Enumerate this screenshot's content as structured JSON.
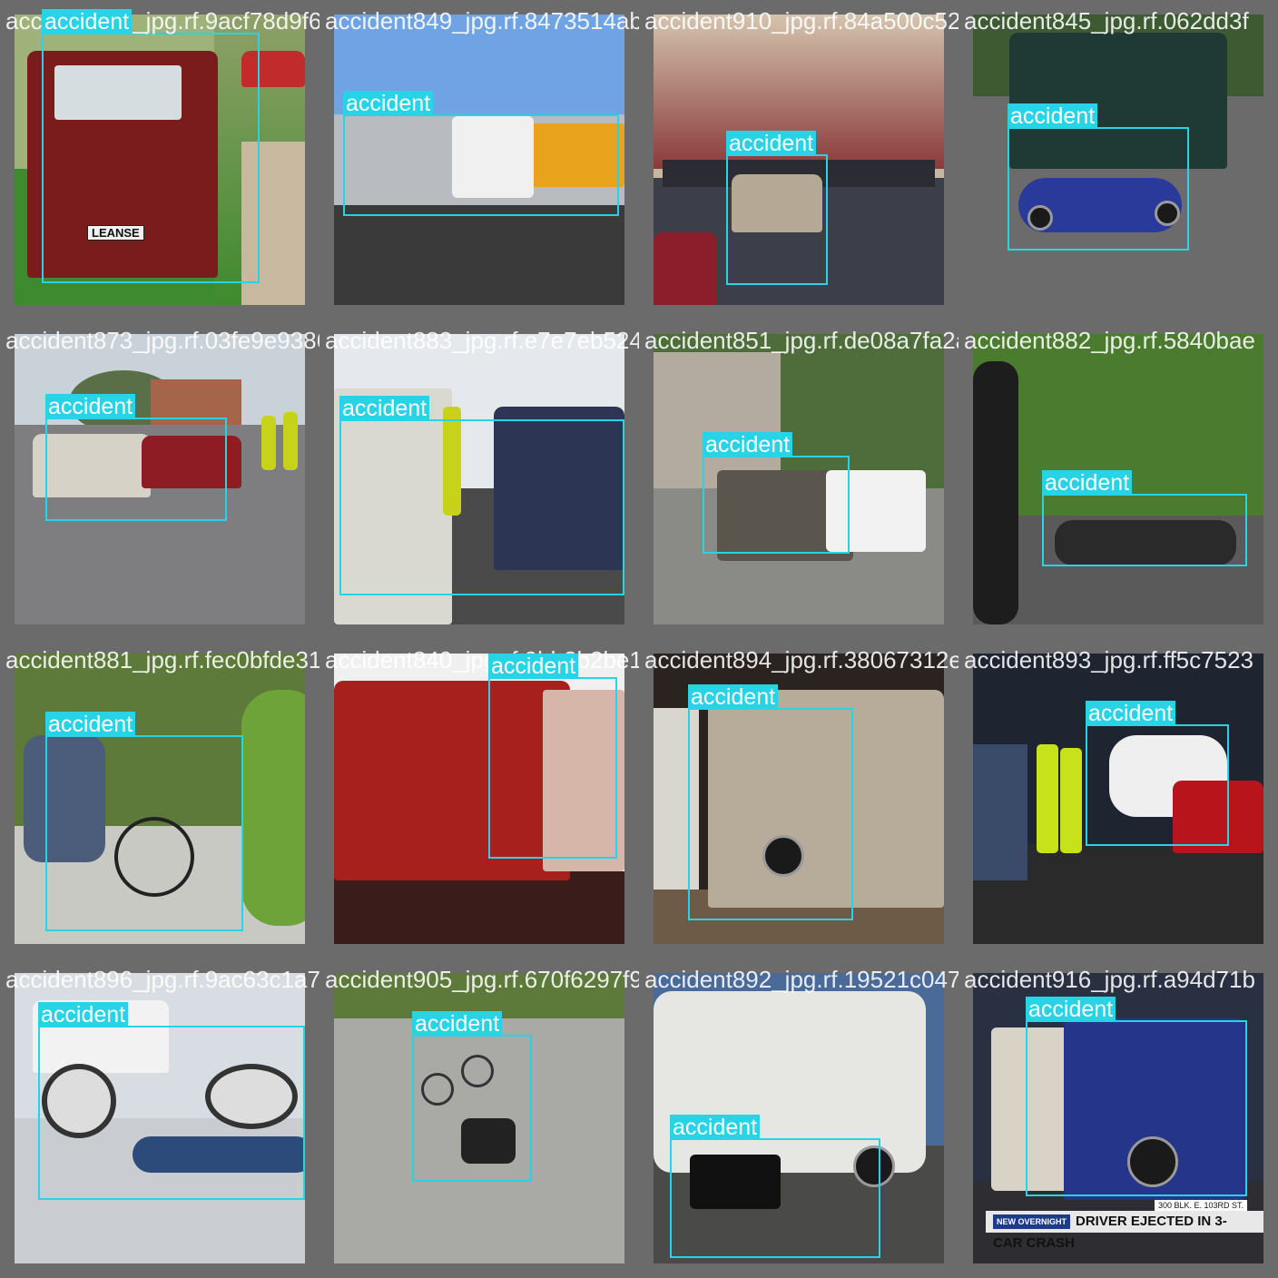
{
  "grid": {
    "tiles": [
      {
        "filename": "accident877_jpg.rf.9acf78d9f6421cf3004450c",
        "label": "accident",
        "sky": "#9fb27a",
        "ground": "#3e8a2e",
        "car": "#7a1c1c",
        "plate": "LEANSE"
      },
      {
        "filename": "accident849_jpg.rf.8473514ab600ab9f7289b5f",
        "label": "accident",
        "sky": "#6fa3e3",
        "ground": "#3a3a3a",
        "car": "#e9a21c"
      },
      {
        "filename": "accident910_jpg.rf.84a500c5229e3580e9b92bf",
        "label": "accident",
        "sky": "#c8b7a0",
        "ground": "#3c3f4a",
        "car": "#b5a894"
      },
      {
        "filename": "accident845_jpg.rf.062dd3f",
        "label": "accident",
        "sky": "#3d5a33",
        "ground": "#6b6b6b",
        "car": "#1f3a35"
      },
      {
        "filename": "accident873_jpg.rf.03fe9e9386b4fd8057e5fe7",
        "label": "accident",
        "sky": "#c9d2d8",
        "ground": "#7e7e80",
        "car": "#d6d2c7"
      },
      {
        "filename": "accident883_jpg.rf.e7e7eb5247a4dec5b52ef3b",
        "label": "accident",
        "sky": "#e5e8ec",
        "ground": "#4a4a4a",
        "car": "#2c3553"
      },
      {
        "filename": "accident851_jpg.rf.de08a7fa2a9b5b9b26ee6bc",
        "label": "accident",
        "sky": "#4f6d3b",
        "ground": "#8a8a86",
        "car": "#5a564e"
      },
      {
        "filename": "accident882_jpg.rf.5840bae",
        "label": "accident",
        "sky": "#4a7b2f",
        "ground": "#5a5a5a",
        "car": "#2a2a2a"
      },
      {
        "filename": "accident881_jpg.rf.fec0bfde319c5b1ed2d49",
        "label": "accident",
        "sky": "#5e7a3a",
        "ground": "#c9c9c4",
        "car": "#6ea33a"
      },
      {
        "filename": "accident840_jpg.rf.9bb3b2be1a2e83f8e27b",
        "label": "accident",
        "sky": "#f0f0f0",
        "ground": "#3a1d1a",
        "car": "#a8201e"
      },
      {
        "filename": "accident894_jpg.rf.38067312e63e3f09c",
        "label": "accident",
        "sky": "#2a2320",
        "ground": "#6d5b48",
        "car": "#b7ac9a"
      },
      {
        "filename": "accident893_jpg.rf.ff5c7523",
        "label": "accident",
        "sky": "#1e2430",
        "ground": "#2a2a2a",
        "car": "#efefef"
      },
      {
        "filename": "accident896_jpg.rf.9ac63c1a70de6f9054",
        "label": "accident",
        "sky": "#d8dde3",
        "ground": "#c9ccd1",
        "car": "#f2f2f2"
      },
      {
        "filename": "accident905_jpg.rf.670f6297f9f0ef9b13",
        "label": "accident",
        "sky": "#5e7a3a",
        "ground": "#a9aaa6",
        "car": "#cfcfcf"
      },
      {
        "filename": "accident892_jpg.rf.19521c047a1df3f6af37",
        "label": "accident",
        "sky": "#4a6a9a",
        "ground": "#4a4a48",
        "car": "#e6e6e2"
      },
      {
        "filename": "accident916_jpg.rf.a94d71b",
        "label": "accident",
        "sky": "#283042",
        "ground": "#2e2e32",
        "car": "#25358a",
        "banner": "DRIVER EJECTED IN 3-CAR CRASH",
        "banner_tag": "NEW OVERNIGHT",
        "address": "300 BLK. E. 103RD ST."
      }
    ]
  },
  "colors": {
    "box": "#29d3e6",
    "label_text": "#ffffff",
    "tile_bg": "#6b6b6b"
  }
}
